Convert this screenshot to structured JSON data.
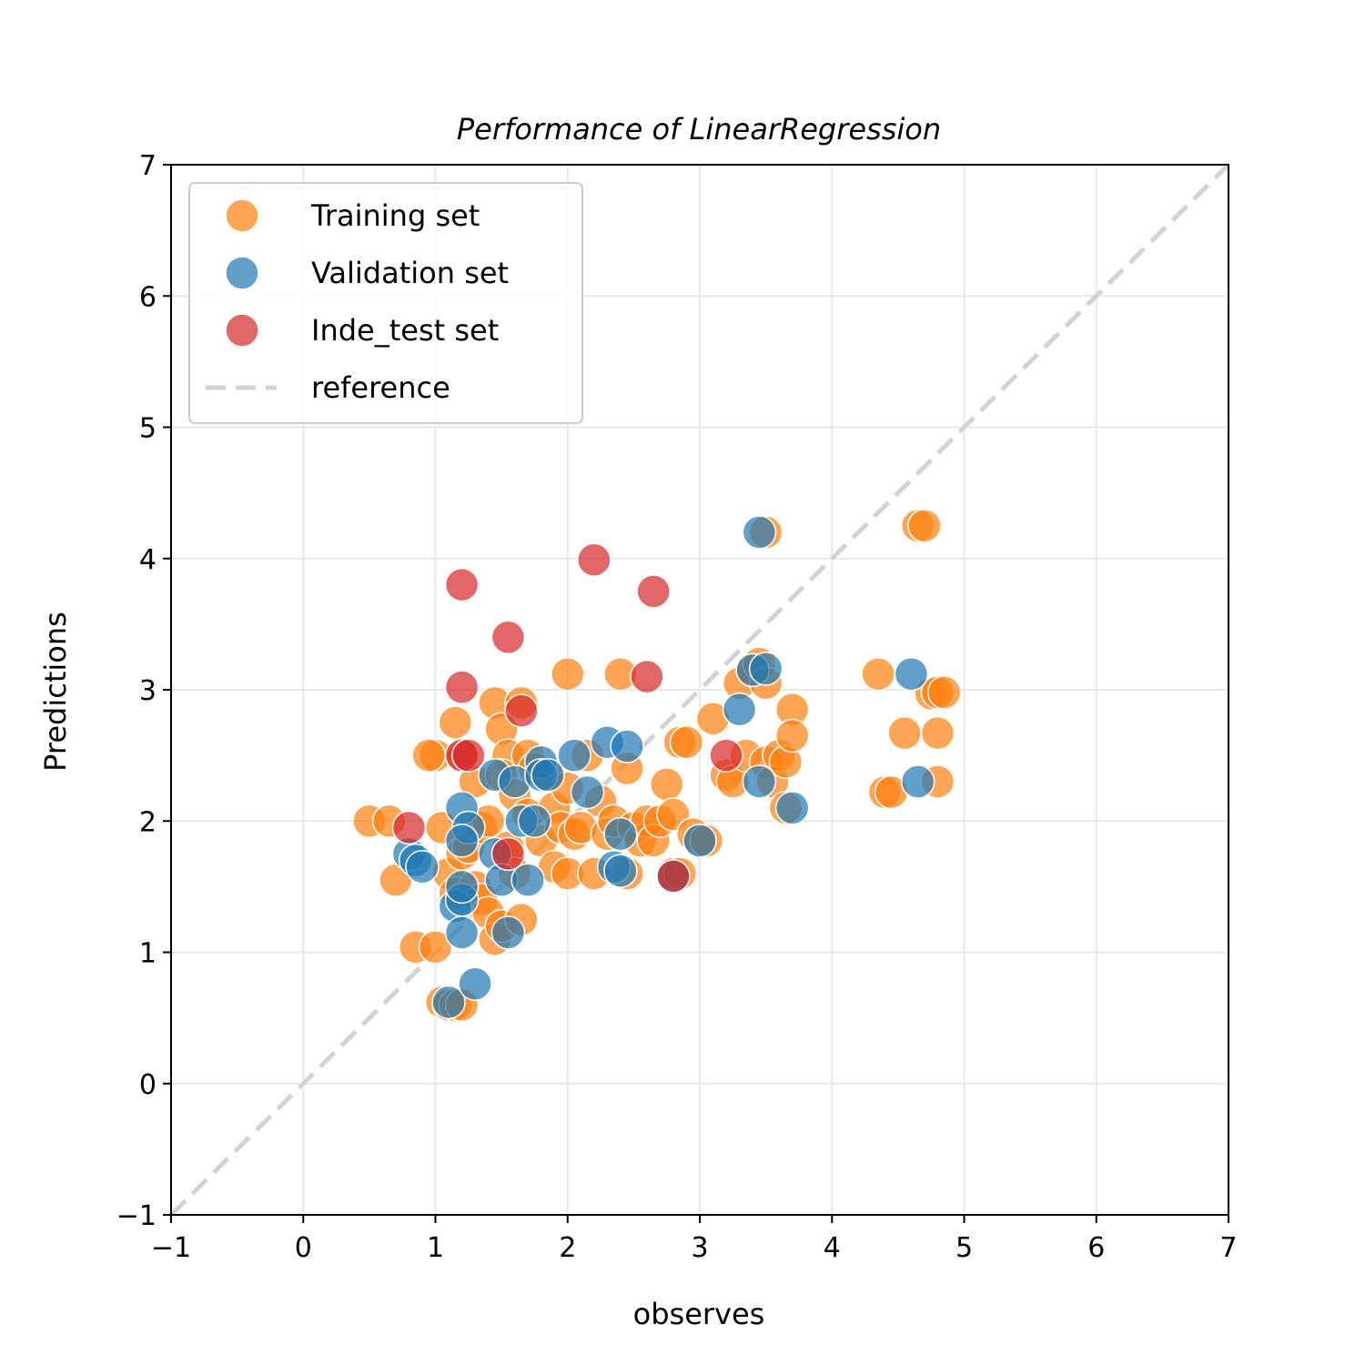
{
  "chart_data": {
    "type": "scatter",
    "title": "Performance of LinearRegression",
    "xlabel": "observes",
    "ylabel": "Predictions",
    "xlim": [
      -1,
      7
    ],
    "ylim": [
      -1,
      7
    ],
    "xticks": [
      -1,
      0,
      1,
      2,
      3,
      4,
      5,
      6,
      7
    ],
    "yticks": [
      -1,
      0,
      1,
      2,
      3,
      4,
      5,
      6,
      7
    ],
    "xtick_labels": [
      "−1",
      "0",
      "1",
      "2",
      "3",
      "4",
      "5",
      "6",
      "7"
    ],
    "ytick_labels": [
      "−1",
      "0",
      "1",
      "2",
      "3",
      "4",
      "5",
      "6",
      "7"
    ],
    "grid": true,
    "legend_position": "top-left",
    "reference_line": {
      "name": "reference",
      "x": [
        -1,
        7
      ],
      "y": [
        -1,
        7
      ],
      "color": "#d3d3d3",
      "style": "dashed"
    },
    "series": [
      {
        "name": "Training set",
        "color": "#ff7f0e",
        "points": [
          [
            0.5,
            2.0
          ],
          [
            0.65,
            2.0
          ],
          [
            0.7,
            1.55
          ],
          [
            0.85,
            1.04
          ],
          [
            1.0,
            1.04
          ],
          [
            1.0,
            2.5
          ],
          [
            0.95,
            2.5
          ],
          [
            1.05,
            0.62
          ],
          [
            1.1,
            0.6
          ],
          [
            1.15,
            0.6
          ],
          [
            1.2,
            0.6
          ],
          [
            1.05,
            1.95
          ],
          [
            1.1,
            1.6
          ],
          [
            1.15,
            1.45
          ],
          [
            1.2,
            1.75
          ],
          [
            1.25,
            1.8
          ],
          [
            1.3,
            1.5
          ],
          [
            1.35,
            1.4
          ],
          [
            1.15,
            2.75
          ],
          [
            1.2,
            2.5
          ],
          [
            1.3,
            2.3
          ],
          [
            1.35,
            1.95
          ],
          [
            1.4,
            2.0
          ],
          [
            1.4,
            1.3
          ],
          [
            1.45,
            1.1
          ],
          [
            1.5,
            1.2
          ],
          [
            1.45,
            2.9
          ],
          [
            1.5,
            2.7
          ],
          [
            1.55,
            2.5
          ],
          [
            1.5,
            2.35
          ],
          [
            1.55,
            1.8
          ],
          [
            1.6,
            1.6
          ],
          [
            1.6,
            2.2
          ],
          [
            1.65,
            1.25
          ],
          [
            1.65,
            2.9
          ],
          [
            1.7,
            2.05
          ],
          [
            1.7,
            2.5
          ],
          [
            1.75,
            2.4
          ],
          [
            1.8,
            1.85
          ],
          [
            1.85,
            2.35
          ],
          [
            1.9,
            2.1
          ],
          [
            1.95,
            1.95
          ],
          [
            1.9,
            1.65
          ],
          [
            2.0,
            1.6
          ],
          [
            2.0,
            2.25
          ],
          [
            2.05,
            1.9
          ],
          [
            2.0,
            3.12
          ],
          [
            2.1,
            1.95
          ],
          [
            2.15,
            2.5
          ],
          [
            2.2,
            1.6
          ],
          [
            2.25,
            2.15
          ],
          [
            2.3,
            1.9
          ],
          [
            2.35,
            2.0
          ],
          [
            2.4,
            3.12
          ],
          [
            2.45,
            2.4
          ],
          [
            2.45,
            1.6
          ],
          [
            2.5,
            1.95
          ],
          [
            2.55,
            1.85
          ],
          [
            2.6,
            2.0
          ],
          [
            2.65,
            1.85
          ],
          [
            2.7,
            2.0
          ],
          [
            2.75,
            2.28
          ],
          [
            2.8,
            2.05
          ],
          [
            2.8,
            1.6
          ],
          [
            2.85,
            1.6
          ],
          [
            2.85,
            2.6
          ],
          [
            2.9,
            2.6
          ],
          [
            2.95,
            1.9
          ],
          [
            3.0,
            1.85
          ],
          [
            3.05,
            1.85
          ],
          [
            3.1,
            2.78
          ],
          [
            3.2,
            2.35
          ],
          [
            3.25,
            2.3
          ],
          [
            3.3,
            3.05
          ],
          [
            3.35,
            2.5
          ],
          [
            3.4,
            3.15
          ],
          [
            3.45,
            3.2
          ],
          [
            3.5,
            3.05
          ],
          [
            3.5,
            2.45
          ],
          [
            3.5,
            4.2
          ],
          [
            3.55,
            2.3
          ],
          [
            3.6,
            2.5
          ],
          [
            3.65,
            2.45
          ],
          [
            3.7,
            2.85
          ],
          [
            3.7,
            2.65
          ],
          [
            3.65,
            2.1
          ],
          [
            4.35,
            3.12
          ],
          [
            4.4,
            2.22
          ],
          [
            4.45,
            2.22
          ],
          [
            4.55,
            2.67
          ],
          [
            4.65,
            4.25
          ],
          [
            4.7,
            4.25
          ],
          [
            4.75,
            2.97
          ],
          [
            4.8,
            2.98
          ],
          [
            4.85,
            2.98
          ],
          [
            4.8,
            2.67
          ],
          [
            4.8,
            2.3
          ]
        ]
      },
      {
        "name": "Validation set",
        "color": "#1f77b4",
        "points": [
          [
            0.8,
            1.75
          ],
          [
            0.85,
            1.7
          ],
          [
            0.9,
            1.65
          ],
          [
            1.1,
            0.62
          ],
          [
            1.15,
            1.35
          ],
          [
            1.2,
            1.4
          ],
          [
            1.2,
            1.15
          ],
          [
            1.2,
            2.1
          ],
          [
            1.25,
            1.95
          ],
          [
            1.2,
            1.85
          ],
          [
            1.2,
            1.5
          ],
          [
            1.3,
            0.76
          ],
          [
            1.45,
            2.35
          ],
          [
            1.45,
            1.75
          ],
          [
            1.5,
            1.55
          ],
          [
            1.55,
            1.15
          ],
          [
            1.6,
            2.3
          ],
          [
            1.65,
            2.0
          ],
          [
            1.7,
            1.55
          ],
          [
            1.75,
            2.0
          ],
          [
            1.8,
            2.45
          ],
          [
            1.8,
            2.35
          ],
          [
            1.85,
            2.35
          ],
          [
            2.05,
            2.5
          ],
          [
            2.15,
            2.22
          ],
          [
            2.3,
            2.6
          ],
          [
            2.35,
            1.65
          ],
          [
            2.4,
            1.9
          ],
          [
            2.45,
            2.57
          ],
          [
            2.4,
            1.62
          ],
          [
            2.8,
            1.58
          ],
          [
            3.0,
            1.85
          ],
          [
            3.3,
            2.85
          ],
          [
            3.4,
            3.15
          ],
          [
            3.5,
            3.16
          ],
          [
            3.45,
            4.2
          ],
          [
            3.45,
            2.3
          ],
          [
            3.7,
            2.1
          ],
          [
            4.6,
            3.12
          ],
          [
            4.65,
            2.3
          ]
        ]
      },
      {
        "name": "Inde_test set",
        "color": "#d62728",
        "points": [
          [
            0.8,
            1.95
          ],
          [
            1.2,
            3.8
          ],
          [
            1.2,
            3.02
          ],
          [
            1.2,
            2.5
          ],
          [
            1.25,
            2.5
          ],
          [
            1.55,
            3.4
          ],
          [
            1.65,
            2.84
          ],
          [
            1.55,
            1.75
          ],
          [
            2.2,
            3.99
          ],
          [
            2.6,
            3.1
          ],
          [
            2.65,
            3.75
          ],
          [
            2.8,
            1.58
          ],
          [
            3.2,
            2.5
          ]
        ]
      }
    ]
  }
}
